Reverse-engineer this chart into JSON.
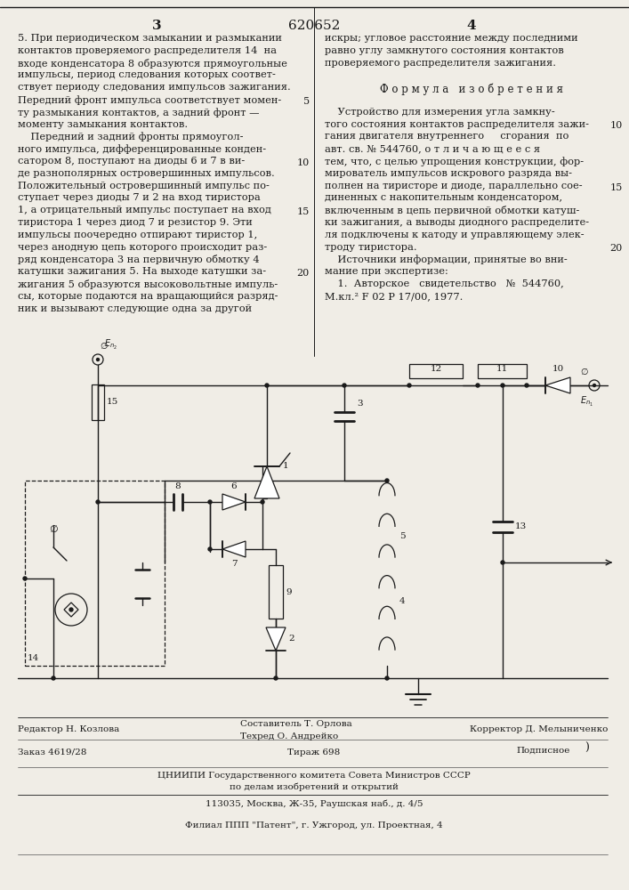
{
  "page_number_left": "3",
  "page_number_center": "620652",
  "page_number_right": "4",
  "bg_color": "#f0ede6",
  "text_color": "#1a1a1a",
  "left_column_text": [
    "5. При периодическом замыкании и размыкании",
    "контактов проверяемого распределителя 14  на",
    "входе конденсатора 8 образуются прямоугольные",
    "импульсы, период следования которых соответ-",
    "ствует периоду следования импульсов зажигания.",
    "Передний фронт импульса соответствует момен-",
    "ту размыкания контактов, а задний фронт —",
    "моменту замыкания контактов.",
    "    Передний и задний фронты прямоугол-",
    "ного импульса, дифференцированные конден-",
    "сатором 8, поступают на диоды 6 и 7 в ви-",
    "де разнополярных островершинных импульсов.",
    "Положительный островершинный импульс по-",
    "ступает через диоды 7 и 2 на вход тиристора",
    "1, а отрицательный импульс поступает на вход",
    "тиристора 1 через диод 7 и резистор 9. Эти",
    "импульсы поочередно отпирают тиристор 1,",
    "через анодную цепь которого происходит раз-",
    "ряд конденсатора 3 на первичную обмотку 4",
    "катушки зажигания 5. На выходе катушки за-",
    "жигания 5 образуются высоковольтные импуль-",
    "сы, которые подаются на вращающийся разряд-",
    "ник и вызывают следующие одна за другой"
  ],
  "left_line_num_rows": {
    "5": 6,
    "10": 11,
    "15": 15,
    "20": 20
  },
  "right_column_text": [
    "искры; угловое расстояние между последними",
    "равно углу замкнутого состояния контактов",
    "проверяемого распределителя зажигания.",
    "",
    "Ф о р м у л а   и з о б р е т е н и я",
    "",
    "    Устройство для измерения угла замкну-",
    "того состояния контактов распределителя зажи-",
    "гания двигателя внутреннего     сгорания  по",
    "авт. св. № 544760, о т л и ч а ю щ е е с я",
    "тем, что, с целью упрощения конструкции, фор-",
    "мирователь импульсов искрового разряда вы-",
    "полнен на тиристоре и диоде, параллельно сое-",
    "диненных с накопительным конденсатором,",
    "включенным в цепь первичной обмотки катуш-",
    "ки зажигания, а выводы диодного распределите-",
    "ля подключены к катоду и управляющему элек-",
    "троду тиристора.",
    "    Источники информации, принятые во вни-",
    "мание при экспертизе:",
    "    1.  Авторское   свидетельство   №  544760,",
    "М.кл.² F 02 Р 17/00, 1977."
  ],
  "right_line_num_rows": {
    "10": 8,
    "15": 13,
    "20": 18
  },
  "footer_line1_left": "Редактор Н. Козлова",
  "footer_line1_center1": "Составитель Т. Орлова",
  "footer_line1_center2": "Техред О. Андрейко",
  "footer_line1_right": "Корректор Д. Мелыниченко",
  "footer_line2_left": "Заказ 4619/28",
  "footer_line2_center": "Тираж 698",
  "footer_line2_right": "Подписное",
  "footer_line3": "ЦНИИПИ Государственного комитета Совета Министров СССР",
  "footer_line4": "по делам изобретений и открытий",
  "footer_line5": "113035, Москва, Ж-35, Раушская наб., д. 4/5",
  "footer_line6": "Филиал ППП \"Патент\", г. Ужгород, ул. Проектная, 4"
}
